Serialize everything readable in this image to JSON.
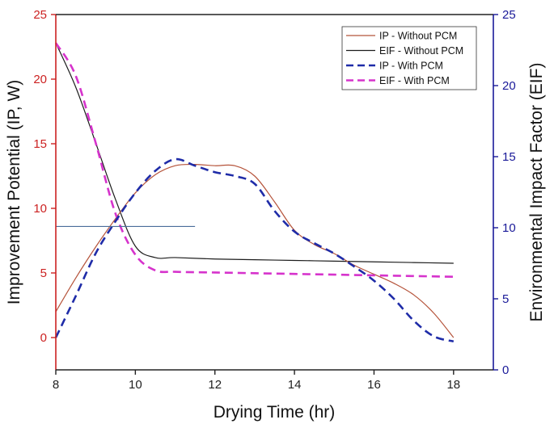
{
  "chart_data": {
    "type": "line",
    "xlabel": "Drying Time (hr)",
    "ylabel_left": "Improvement Potential (IP, W)",
    "ylabel_right": "Environmental Impact Factor (EIF)",
    "xlim": [
      8,
      19
    ],
    "ylim_left": [
      -2.5,
      25
    ],
    "ylim_right": [
      0,
      25
    ],
    "x_ticks": [
      "8",
      "10",
      "12",
      "14",
      "16",
      "18"
    ],
    "y_left_ticks": [
      "0",
      "5",
      "10",
      "15",
      "20",
      "25"
    ],
    "y_right_ticks": [
      "0",
      "5",
      "10",
      "15",
      "20",
      "25"
    ],
    "colors": {
      "left_axis": "#cc2222",
      "right_axis": "#1a1a99",
      "bottom_axis": "#222222"
    },
    "legend_position": "top-right",
    "annotation_line": {
      "axis": "left",
      "x": [
        8,
        11.5
      ],
      "y": 8.6,
      "color": "#4a6d9a"
    },
    "series": [
      {
        "name": "IP - Without PCM",
        "axis": "left",
        "color": "#b5533a",
        "style": "solid",
        "x": [
          8,
          8.5,
          9,
          9.5,
          10,
          10.5,
          11,
          11.5,
          12,
          12.5,
          13,
          13.5,
          14,
          14.5,
          15,
          15.5,
          16,
          16.5,
          17,
          17.5,
          18
        ],
        "y": [
          2.0,
          4.6,
          7.0,
          9.2,
          11.2,
          12.6,
          13.3,
          13.4,
          13.3,
          13.3,
          12.5,
          10.5,
          8.3,
          7.2,
          6.5,
          5.6,
          4.9,
          4.2,
          3.3,
          1.9,
          0.0
        ]
      },
      {
        "name": "EIF - Without PCM",
        "axis": "right",
        "color": "#1c1c1c",
        "style": "solid",
        "x": [
          8,
          8.5,
          9,
          9.5,
          10,
          10.5,
          11,
          12,
          13,
          14,
          15,
          16,
          17,
          18
        ],
        "y": [
          23.0,
          19.9,
          16.0,
          12.0,
          8.7,
          7.9,
          7.9,
          7.8,
          7.75,
          7.7,
          7.65,
          7.6,
          7.55,
          7.5
        ]
      },
      {
        "name": "IP - With PCM",
        "axis": "left",
        "color": "#1f2ca8",
        "style": "dashed",
        "x": [
          8,
          8.5,
          9,
          9.5,
          10,
          10.5,
          11,
          11.5,
          12,
          12.5,
          13,
          13.5,
          14,
          14.5,
          15,
          15.5,
          16,
          16.5,
          17,
          17.5,
          18
        ],
        "y": [
          0.0,
          3.2,
          6.5,
          9.0,
          11.2,
          12.9,
          13.8,
          13.3,
          12.8,
          12.5,
          11.9,
          9.8,
          8.2,
          7.3,
          6.5,
          5.5,
          4.4,
          3.0,
          1.3,
          0.1,
          -0.3
        ]
      },
      {
        "name": "EIF - With PCM",
        "axis": "right",
        "color": "#d633cc",
        "style": "dashed",
        "x": [
          8,
          8.5,
          9,
          9.5,
          10,
          10.5,
          11,
          12,
          13,
          14,
          15,
          16,
          17,
          18
        ],
        "y": [
          23.0,
          20.7,
          16.0,
          11.0,
          8.1,
          7.0,
          6.9,
          6.85,
          6.8,
          6.75,
          6.7,
          6.65,
          6.6,
          6.55
        ]
      }
    ]
  }
}
